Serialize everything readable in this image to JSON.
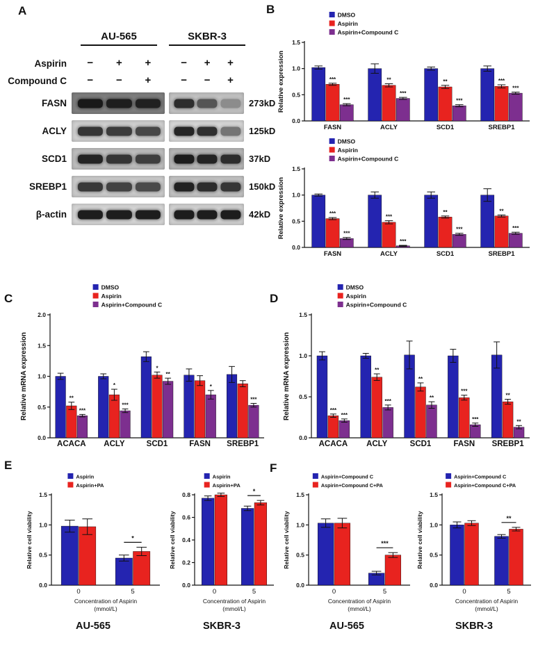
{
  "figure": {
    "panel_labels": {
      "A": "A",
      "B": "B",
      "C": "C",
      "D": "D",
      "E": "E",
      "F": "F"
    }
  },
  "colors": {
    "dmso_blue": "#2424b0",
    "aspirin_red": "#e8231f",
    "compound_purple": "#7d2f8f"
  },
  "panels": {
    "A": {
      "cell_lines": [
        "AU-565",
        "SKBR-3"
      ],
      "treatments": [
        {
          "label": "Aspirin",
          "signs": [
            "−",
            "+",
            "+",
            "−",
            "+",
            "+"
          ]
        },
        {
          "label": "Compound C",
          "signs": [
            "−",
            "−",
            "+",
            "−",
            "−",
            "+"
          ]
        }
      ],
      "rows": [
        {
          "protein": "FASN",
          "kd": "273kD",
          "gel_bg": [
            "#7e7e7e",
            "#c2c2c2"
          ],
          "bands": [
            [
              0.95,
              0.9,
              0.88
            ],
            [
              0.85,
              0.62,
              0.3
            ]
          ]
        },
        {
          "protein": "ACLY",
          "kd": "125kD",
          "gel_bg": [
            "#cfcfcf",
            "#d6d6d6"
          ],
          "bands": [
            [
              0.82,
              0.78,
              0.72
            ],
            [
              0.9,
              0.85,
              0.5
            ]
          ]
        },
        {
          "protein": "SCD1",
          "kd": "37kD",
          "gel_bg": [
            "#bdbdbd",
            "#b6b6b6"
          ],
          "bands": [
            [
              0.9,
              0.8,
              0.75
            ],
            [
              0.95,
              0.9,
              0.85
            ]
          ]
        },
        {
          "protein": "SREBP1",
          "kd": "150kD",
          "gel_bg": [
            "#cacaca",
            "#c2c2c2"
          ],
          "bands": [
            [
              0.8,
              0.74,
              0.7
            ],
            [
              0.92,
              0.86,
              0.8
            ]
          ]
        },
        {
          "protein": "β-actin",
          "kd": "42kD",
          "gel_bg": [
            "#d4d4d4",
            "#d0d0d0"
          ],
          "bands": [
            [
              0.95,
              0.95,
              0.95
            ],
            [
              0.95,
              0.95,
              0.95
            ]
          ]
        }
      ]
    },
    "E": {
      "cell_line_labels": [
        "AU-565",
        "SKBR-3"
      ]
    },
    "F": {
      "cell_line_labels": [
        "AU-565",
        "SKBR-3"
      ]
    }
  },
  "chart_data": [
    {
      "id": "B-top-AU565-protein-expression",
      "type": "bar",
      "ylabel": "Relative expression",
      "ylim": [
        0,
        1.5
      ],
      "yticks": [
        0,
        0.5,
        1,
        1.5
      ],
      "categories": [
        "FASN",
        "ACLY",
        "SCD1",
        "SREBP1"
      ],
      "series": [
        {
          "name": "DMSO",
          "color": "#2424b0",
          "values": [
            1.02,
            1.0,
            1.0,
            1.0
          ],
          "errors": [
            0.03,
            0.09,
            0.03,
            0.05
          ],
          "sig": [
            "",
            "",
            "",
            ""
          ]
        },
        {
          "name": "Aspirin",
          "color": "#e8231f",
          "values": [
            0.7,
            0.68,
            0.65,
            0.66
          ],
          "errors": [
            0.02,
            0.03,
            0.03,
            0.03
          ],
          "sig": [
            "***",
            "**",
            "**",
            "***"
          ]
        },
        {
          "name": "Aspirin+Compound C",
          "color": "#7d2f8f",
          "values": [
            0.31,
            0.43,
            0.29,
            0.53
          ],
          "errors": [
            0.02,
            0.02,
            0.02,
            0.02
          ],
          "sig": [
            "***",
            "***",
            "***",
            "***"
          ]
        }
      ],
      "legend": "top-inside",
      "legend_fx": 0.11,
      "cat_font": 9.5,
      "cat_weight": "bold",
      "ml": 42
    },
    {
      "id": "B-bottom-SKBR3-protein-expression",
      "type": "bar",
      "ylabel": "Relative expression",
      "ylim": [
        0,
        1.5
      ],
      "yticks": [
        0,
        0.5,
        1,
        1.5
      ],
      "categories": [
        "FASN",
        "ACLY",
        "SCD1",
        "SREBP1"
      ],
      "series": [
        {
          "name": "DMSO",
          "color": "#2424b0",
          "values": [
            1.0,
            1.0,
            1.0,
            1.0
          ],
          "errors": [
            0.02,
            0.06,
            0.06,
            0.12
          ],
          "sig": [
            "",
            "",
            "",
            ""
          ]
        },
        {
          "name": "Aspirin",
          "color": "#e8231f",
          "values": [
            0.55,
            0.48,
            0.58,
            0.6
          ],
          "errors": [
            0.02,
            0.03,
            0.02,
            0.02
          ],
          "sig": [
            "***",
            "***",
            "**",
            "**"
          ]
        },
        {
          "name": "Aspirin+Compound C",
          "color": "#7d2f8f",
          "values": [
            0.17,
            0.03,
            0.25,
            0.27
          ],
          "errors": [
            0.02,
            0.01,
            0.02,
            0.02
          ],
          "sig": [
            "***",
            "***",
            "***",
            "***"
          ]
        }
      ],
      "legend": "top-inside",
      "legend_fx": 0.11,
      "cat_font": 9.5,
      "cat_weight": "bold",
      "ml": 42
    },
    {
      "id": "C-AU565-mRNA-expression",
      "type": "bar",
      "ylabel": "Relative mRNA expression",
      "ylim": [
        0,
        2.0
      ],
      "yticks": [
        0,
        0.5,
        1,
        1.5,
        2
      ],
      "categories": [
        "ACACA",
        "ACLY",
        "SCD1",
        "FASN",
        "SREBP1"
      ],
      "series": [
        {
          "name": "DMSO",
          "color": "#2424b0",
          "values": [
            1.0,
            1.0,
            1.32,
            1.02,
            1.03
          ],
          "errors": [
            0.05,
            0.04,
            0.08,
            0.1,
            0.13
          ],
          "sig": [
            "",
            "",
            "",
            "",
            ""
          ]
        },
        {
          "name": "Aspirin",
          "color": "#e8231f",
          "values": [
            0.52,
            0.7,
            1.02,
            0.93,
            0.88
          ],
          "errors": [
            0.06,
            0.09,
            0.05,
            0.08,
            0.05
          ],
          "sig": [
            "**",
            "*",
            "*",
            "",
            ""
          ]
        },
        {
          "name": "Aspirin+Compound C",
          "color": "#7d2f8f",
          "values": [
            0.36,
            0.44,
            0.92,
            0.7,
            0.53
          ],
          "errors": [
            0.02,
            0.03,
            0.05,
            0.07,
            0.03
          ],
          "sig": [
            "***",
            "***",
            "**",
            "*",
            "***"
          ]
        }
      ],
      "legend": "top-inside",
      "legend_fx": 0.2,
      "cat_font": 11.5,
      "cat_weight": "bold",
      "ml": 46,
      "ylabel_font": 10
    },
    {
      "id": "D-SKBR3-mRNA-expression",
      "type": "bar",
      "ylabel": "Relative mRNA expression",
      "ylim": [
        0,
        1.5
      ],
      "yticks": [
        0,
        0.5,
        1,
        1.5
      ],
      "categories": [
        "ACACA",
        "ACLY",
        "SCD1",
        "FASN",
        "SREBP1"
      ],
      "series": [
        {
          "name": "DMSO",
          "color": "#2424b0",
          "values": [
            1.0,
            1.0,
            1.01,
            1.0,
            1.01
          ],
          "errors": [
            0.05,
            0.03,
            0.17,
            0.08,
            0.16
          ],
          "sig": [
            "",
            "",
            "",
            "",
            ""
          ]
        },
        {
          "name": "Aspirin",
          "color": "#e8231f",
          "values": [
            0.27,
            0.74,
            0.62,
            0.49,
            0.44
          ],
          "errors": [
            0.02,
            0.04,
            0.05,
            0.03,
            0.03
          ],
          "sig": [
            "***",
            "**",
            "**",
            "***",
            "**"
          ]
        },
        {
          "name": "Aspirin+Compound C",
          "color": "#7d2f8f",
          "values": [
            0.21,
            0.37,
            0.4,
            0.16,
            0.13
          ],
          "errors": [
            0.02,
            0.03,
            0.04,
            0.02,
            0.02
          ],
          "sig": [
            "***",
            "***",
            "**",
            "***",
            "**"
          ]
        }
      ],
      "legend": "top-inside",
      "legend_fx": 0.12,
      "cat_font": 11.5,
      "cat_weight": "bold",
      "ml": 44,
      "ylabel_font": 10
    },
    {
      "id": "E-AU565-viability",
      "type": "bar",
      "ylabel": "Relative cell viability",
      "ylim": [
        0,
        1.5
      ],
      "yticks": [
        0,
        0.5,
        1,
        1.5
      ],
      "categories": [
        "0",
        "5"
      ],
      "xlabel": [
        "Concentration of Aspirin",
        "(mmol/L)"
      ],
      "series": [
        {
          "name": "Aspirin",
          "color": "#2424b0",
          "values": [
            0.98,
            0.45
          ],
          "errors": [
            0.1,
            0.05
          ],
          "sig": [
            "",
            ""
          ]
        },
        {
          "name": "Aspirin+PA",
          "color": "#e8231f",
          "values": [
            0.97,
            0.56
          ],
          "errors": [
            0.13,
            0.07
          ],
          "sig": [
            "",
            ""
          ]
        }
      ],
      "brackets": [
        {
          "category": 1,
          "from": 0,
          "to": 1,
          "label": "*"
        }
      ],
      "legend": "top-inside",
      "legend_fx": 0.15,
      "cat_font": 9.5,
      "cat_weight": "normal",
      "ml": 40,
      "ylabel_font": 8.5,
      "legend_font": 7.5
    },
    {
      "id": "E-SKBR3-viability",
      "type": "bar",
      "ylabel": "Relative cell viability",
      "ylim": [
        0,
        0.8
      ],
      "yticks": [
        0,
        0.2,
        0.4,
        0.6,
        0.8
      ],
      "categories": [
        "0",
        "5"
      ],
      "xlabel": [
        "Concentration of Aspirin",
        "(mmol/L)"
      ],
      "series": [
        {
          "name": "Aspirin",
          "color": "#2424b0",
          "values": [
            0.77,
            0.68
          ],
          "errors": [
            0.02,
            0.02
          ],
          "sig": [
            "",
            ""
          ]
        },
        {
          "name": "Aspirin+PA",
          "color": "#e8231f",
          "values": [
            0.8,
            0.73
          ],
          "errors": [
            0.015,
            0.02
          ],
          "sig": [
            "",
            ""
          ]
        }
      ],
      "brackets": [
        {
          "category": 1,
          "from": 0,
          "to": 1,
          "label": "*"
        }
      ],
      "legend": "top-inside",
      "legend_fx": 0.12,
      "cat_font": 9.5,
      "cat_weight": "normal",
      "ml": 40,
      "ylabel_font": 8.5,
      "legend_font": 7.5
    },
    {
      "id": "F-AU565-viability",
      "type": "bar",
      "ylabel": "Relative cell viability",
      "ylim": [
        0,
        1.5
      ],
      "yticks": [
        0,
        0.5,
        1,
        1.5
      ],
      "categories": [
        "0",
        "5"
      ],
      "xlabel": [
        "Concentration of Aspirin",
        "(mmol/L)"
      ],
      "series": [
        {
          "name": "Aspirin+Compound C",
          "color": "#2424b0",
          "values": [
            1.03,
            0.2
          ],
          "errors": [
            0.07,
            0.03
          ],
          "sig": [
            "",
            ""
          ]
        },
        {
          "name": "Aspirin+Compound C+PA",
          "color": "#e8231f",
          "values": [
            1.03,
            0.5
          ],
          "errors": [
            0.08,
            0.04
          ],
          "sig": [
            "",
            ""
          ]
        }
      ],
      "brackets": [
        {
          "category": 1,
          "from": 0,
          "to": 1,
          "label": "***"
        }
      ],
      "legend": "top-inside",
      "legend_fx": 0.04,
      "cat_font": 9.5,
      "cat_weight": "normal",
      "ml": 40,
      "ylabel_font": 8.5,
      "legend_font": 7.3
    },
    {
      "id": "F-SKBR3-viability",
      "type": "bar",
      "ylabel": "Relative cell viability",
      "ylim": [
        0,
        1.5
      ],
      "yticks": [
        0,
        0.5,
        1,
        1.5
      ],
      "categories": [
        "0",
        "5"
      ],
      "xlabel": [
        "Concentration of Aspirin",
        "(mmol/L)"
      ],
      "series": [
        {
          "name": "Aspirin+Compound C",
          "color": "#2424b0",
          "values": [
            1.0,
            0.81
          ],
          "errors": [
            0.05,
            0.03
          ],
          "sig": [
            "",
            ""
          ]
        },
        {
          "name": "Aspirin+Compound C+PA",
          "color": "#e8231f",
          "values": [
            1.03,
            0.93
          ],
          "errors": [
            0.04,
            0.03
          ],
          "sig": [
            "",
            ""
          ]
        }
      ],
      "brackets": [
        {
          "category": 1,
          "from": 0,
          "to": 1,
          "label": "**"
        }
      ],
      "legend": "top-inside",
      "legend_fx": 0.04,
      "cat_font": 9.5,
      "cat_weight": "normal",
      "ml": 40,
      "ylabel_font": 8.5,
      "legend_font": 7.3
    }
  ]
}
